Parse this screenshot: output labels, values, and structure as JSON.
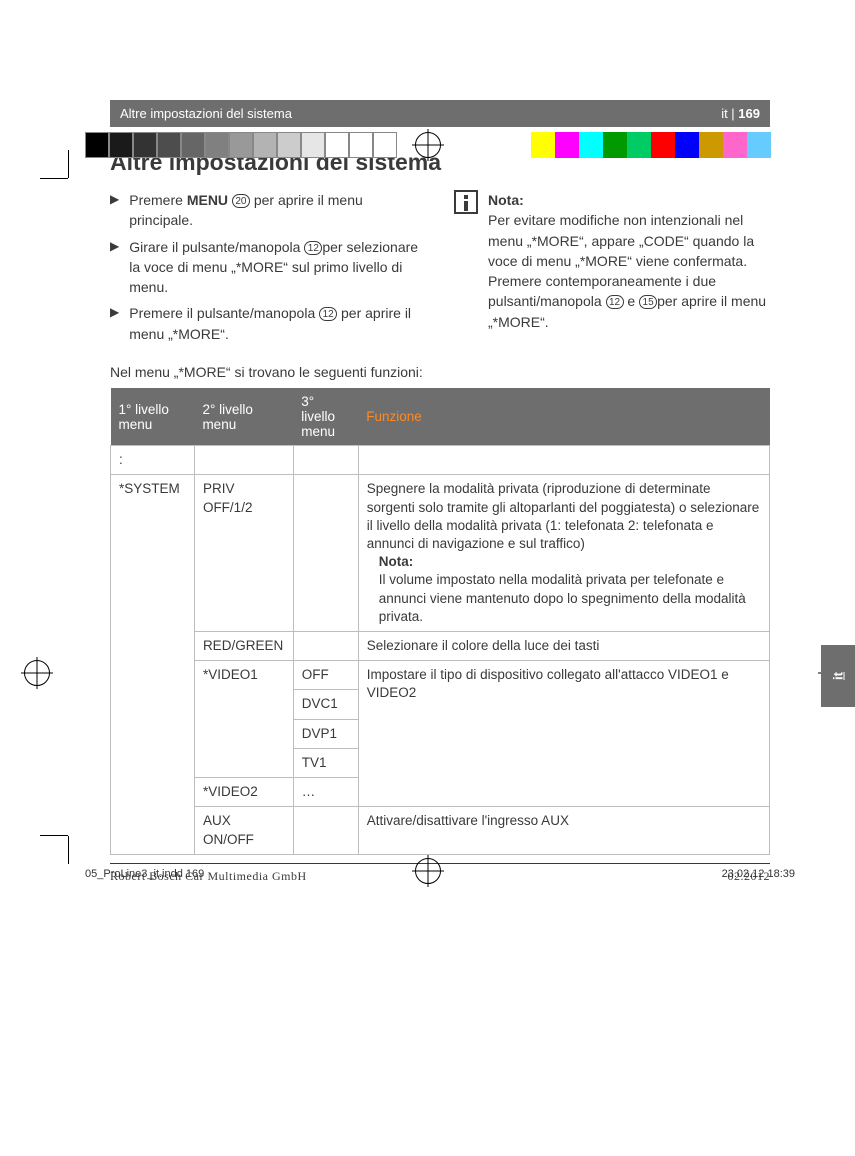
{
  "print_colorbar_left": [
    "#000000",
    "#1a1a1a",
    "#333333",
    "#4d4d4d",
    "#666666",
    "#808080",
    "#999999",
    "#b3b3b3",
    "#cccccc",
    "#e6e6e6",
    "#ffffff",
    "#ffffff",
    "#ffffff"
  ],
  "print_colorbar_right": [
    "#ffff00",
    "#ff00ff",
    "#00ffff",
    "#009900",
    "#00cc66",
    "#ff0000",
    "#0000ff",
    "#cc9900",
    "#ff66cc",
    "#66ccff",
    "#ffffff"
  ],
  "running_head": {
    "section": "Altre impostazioni del sistema",
    "lang": "it",
    "page": "169"
  },
  "edge_tab": "it",
  "h1": "Altre impostazioni del sistema",
  "steps": [
    {
      "pre": "Premere ",
      "bold": "MENU",
      "ref": "20",
      "post": " per aprire il menu principale."
    },
    {
      "pre": "Girare il pulsante/manopola ",
      "ref": "12",
      "post": "per selezionare la voce di menu „*MORE“ sul primo livello di menu."
    },
    {
      "pre": "Premere il pulsante/manopola  ",
      "ref": "12",
      "post": "     per aprire il menu „*MORE“."
    }
  ],
  "note": {
    "title": "Nota:",
    "body_pre": "Per evitare modifiche non intenzionali nel menu „*MORE“, appare „CODE“ quando la voce di menu „*MORE“ viene confermata. Premere contemporaneamente i due pulsanti/manopola ",
    "ref1": "12",
    "mid": " e ",
    "ref2": "15",
    "body_post": "per aprire il menu „*MORE“."
  },
  "intro": "Nel menu „*MORE“ si trovano le seguenti funzioni:",
  "table": {
    "headers": [
      "1° livello menu",
      "2° livello menu",
      "3° livello menu",
      "Funzione"
    ],
    "blank_row": ":",
    "l1_system": "*SYSTEM",
    "rows": {
      "priv": {
        "l2": "PRIV OFF/1/2",
        "func": "Spegnere la modalità privata (riproduzione di determinate sorgenti solo tramite gli altoparlanti del poggiatesta) o selezionare il livello della modalità privata (1: telefonata 2: telefonata e annunci di navigazione e sul traffico)",
        "note_title": "Nota:",
        "note_body": "Il volume impostato nella modalità privata per telefonate e annunci viene mantenuto dopo lo spegnimento della modalità privata."
      },
      "redgreen": {
        "l2": "RED/GREEN",
        "func": "Selezionare il colore della luce dei tasti"
      },
      "video1": {
        "l2": "*VIDEO1",
        "opts": [
          "OFF",
          "DVC1",
          "DVP1",
          "TV1"
        ]
      },
      "video2": {
        "l2": "*VIDEO2",
        "l3": "…"
      },
      "video_func": "Impostare il tipo di dispositivo collegato all'attacco VIDEO1 e VIDEO2",
      "aux": {
        "l2": "AUX ON/OFF",
        "func": "Attivare/disattivare l'ingresso AUX"
      }
    }
  },
  "footer": {
    "company": "Robert Bosch Car Multimedia GmbH",
    "date": "02.2012"
  },
  "printer": {
    "file": "05_ProLine3_it.indd   169",
    "ts": "23.02.12   18:39"
  }
}
